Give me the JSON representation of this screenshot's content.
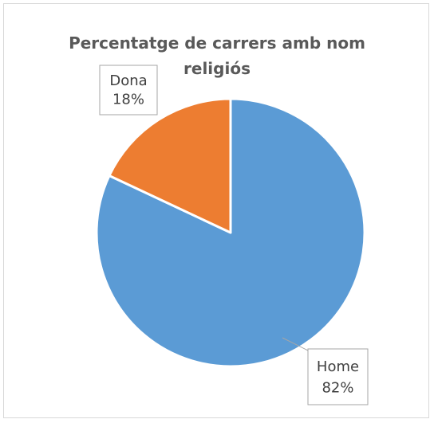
{
  "chart_data": {
    "type": "pie",
    "title": "Percentatge de carrers amb nom religiós",
    "slices": [
      {
        "label": "Home",
        "value": 82,
        "value_label": "82%",
        "color": "#5b9bd5"
      },
      {
        "label": "Dona",
        "value": 18,
        "value_label": "18%",
        "color": "#ed7d31"
      }
    ],
    "legend": "none",
    "data_labels": "callouts with category name and percentage"
  }
}
